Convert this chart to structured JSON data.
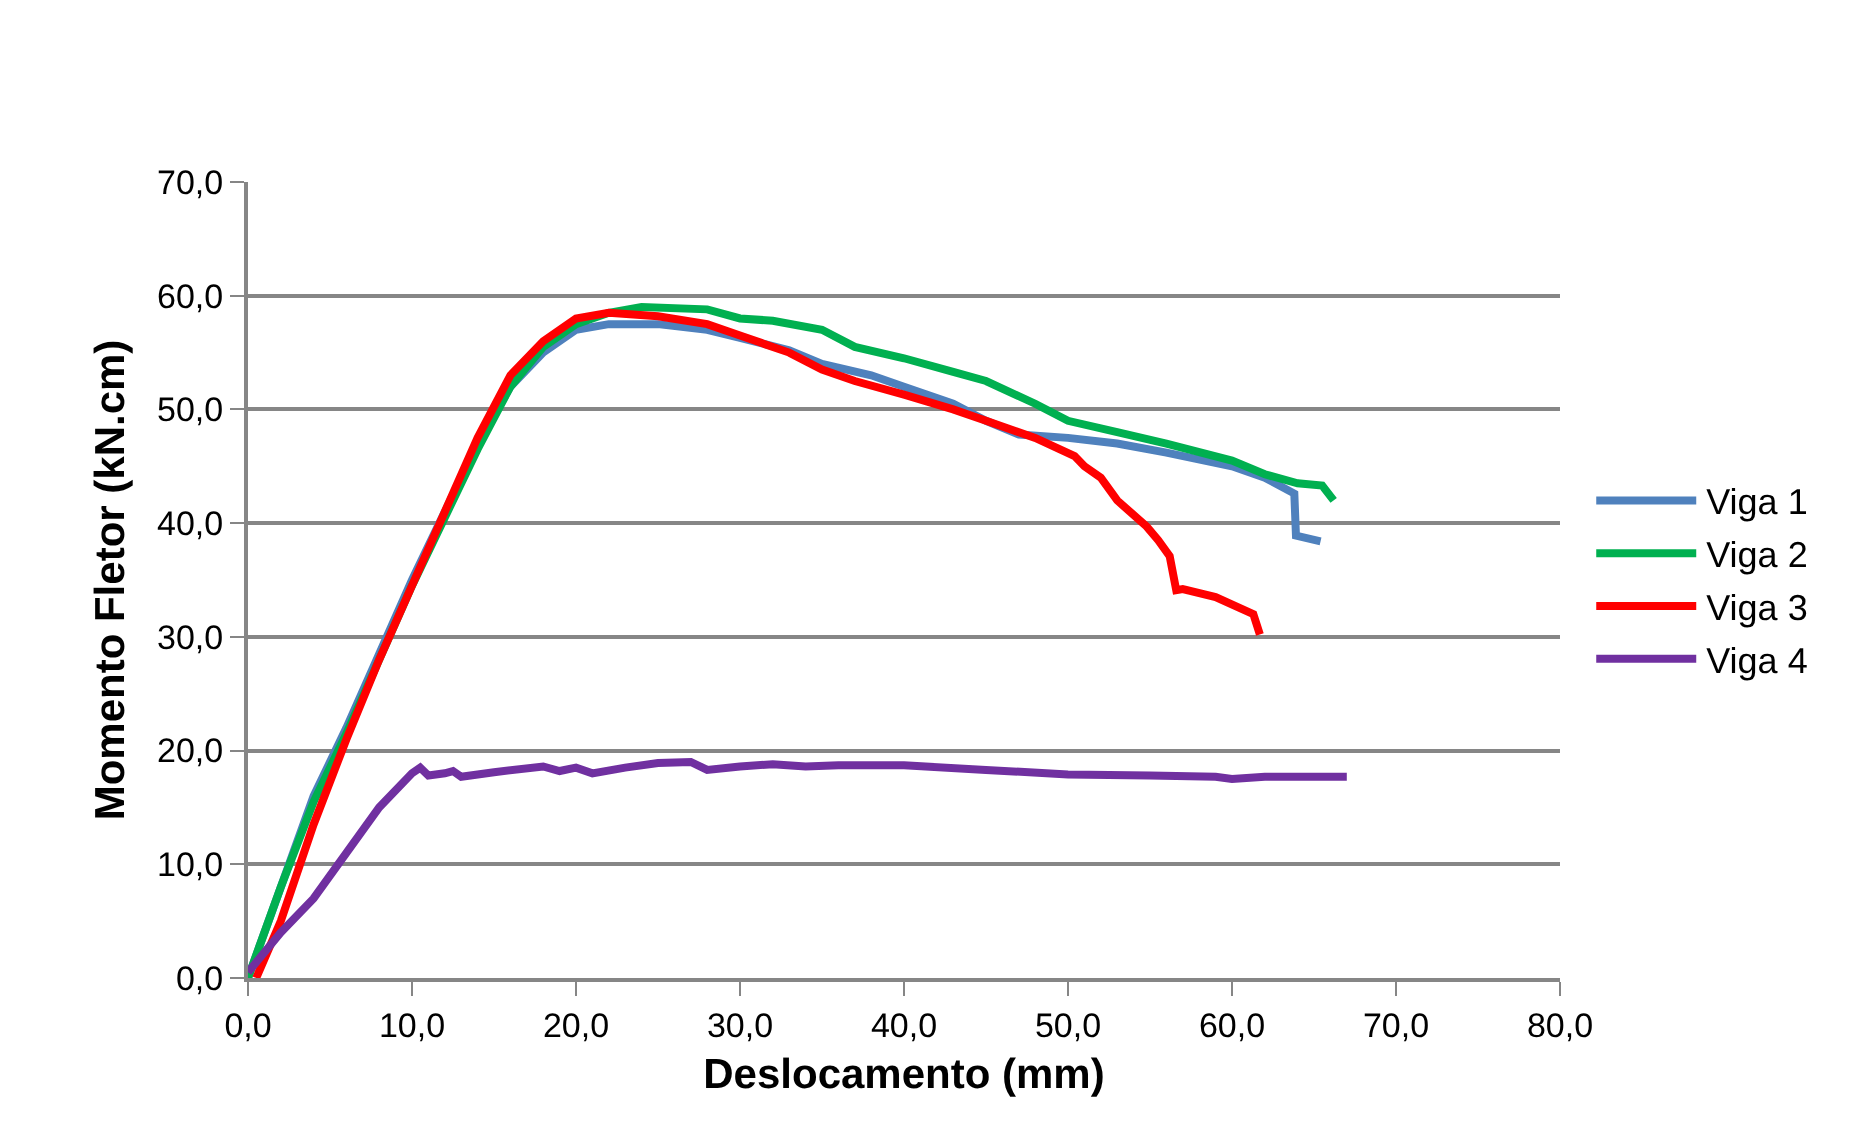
{
  "chart_data": {
    "type": "line",
    "xlabel": "Deslocamento (mm)",
    "ylabel": "Momento Fletor (kN.cm)",
    "xlim": [
      0,
      80
    ],
    "ylim": [
      0,
      70
    ],
    "xticks": [
      {
        "value": 0,
        "label": "0,0"
      },
      {
        "value": 10,
        "label": "10,0"
      },
      {
        "value": 20,
        "label": "20,0"
      },
      {
        "value": 30,
        "label": "30,0"
      },
      {
        "value": 40,
        "label": "40,0"
      },
      {
        "value": 50,
        "label": "50,0"
      },
      {
        "value": 60,
        "label": "60,0"
      },
      {
        "value": 70,
        "label": "70,0"
      },
      {
        "value": 80,
        "label": "80,0"
      }
    ],
    "yticks": [
      {
        "value": 0,
        "label": "0,0"
      },
      {
        "value": 10,
        "label": "10,0"
      },
      {
        "value": 20,
        "label": "20,0"
      },
      {
        "value": 30,
        "label": "30,0"
      },
      {
        "value": 40,
        "label": "40,0"
      },
      {
        "value": 50,
        "label": "50,0"
      },
      {
        "value": 60,
        "label": "60,0"
      },
      {
        "value": 70,
        "label": "70,0"
      }
    ],
    "grid": "y",
    "legend": "right",
    "marker": "none",
    "line_style": "solid",
    "series": [
      {
        "name": "Viga 1",
        "color": "#4f81bd",
        "x": [
          0,
          2,
          4,
          6,
          8,
          10,
          12,
          14,
          16,
          18,
          20,
          22,
          25,
          28,
          30,
          33,
          35,
          38,
          40,
          43,
          45,
          47,
          50,
          53,
          56,
          60,
          62,
          63.8,
          63.9,
          65.4
        ],
        "values": [
          0,
          8,
          16,
          22,
          28.5,
          35,
          41,
          47,
          52,
          55,
          57,
          57.5,
          57.5,
          57,
          56.3,
          55.2,
          54,
          53,
          52,
          50.5,
          49,
          47.8,
          47.5,
          47,
          46.2,
          45,
          44,
          42.6,
          38.9,
          38.4
        ]
      },
      {
        "name": "Viga 2",
        "color": "#00b050",
        "x": [
          0,
          2,
          4,
          6,
          8,
          10,
          12,
          14,
          16,
          18,
          20,
          22,
          24,
          28,
          30,
          32,
          35,
          37,
          40,
          43,
          45,
          48,
          50,
          53,
          56,
          60,
          62,
          64,
          65.5,
          66.2
        ],
        "values": [
          0,
          8,
          15.5,
          21.5,
          28,
          34.5,
          40.5,
          46.5,
          52,
          55.5,
          57.5,
          58.5,
          59,
          58.8,
          58,
          57.8,
          57,
          55.5,
          54.5,
          53.3,
          52.5,
          50.5,
          49,
          48,
          47,
          45.5,
          44.3,
          43.5,
          43.3,
          42
        ]
      },
      {
        "name": "Viga 3",
        "color": "#ff0000",
        "x": [
          0.5,
          2,
          4,
          6,
          8,
          10,
          12,
          14,
          16,
          18,
          20,
          22,
          25,
          28,
          30,
          33,
          35,
          37,
          40,
          43,
          45,
          48,
          50.4,
          51,
          52,
          53,
          54.8,
          55.5,
          56.2,
          56.6,
          57,
          59,
          61.3,
          61.7
        ],
        "values": [
          0,
          5,
          13.5,
          21,
          28,
          34.5,
          41,
          47.5,
          53,
          56,
          58,
          58.5,
          58.2,
          57.5,
          56.5,
          55,
          53.5,
          52.5,
          51.3,
          50,
          49,
          47.5,
          45.9,
          45,
          44,
          42,
          39.7,
          38.5,
          37.1,
          34.1,
          34.2,
          33.5,
          32,
          30.2
        ]
      },
      {
        "name": "Viga 4",
        "color": "#7030a0",
        "x": [
          0,
          2,
          4,
          6,
          8,
          10,
          10.5,
          11,
          12,
          12.5,
          13,
          15,
          18,
          19,
          20,
          21,
          23,
          25,
          27,
          28,
          30,
          32,
          34,
          36,
          40,
          45,
          50,
          55,
          59,
          60,
          62,
          67
        ],
        "values": [
          0.5,
          4,
          7,
          11,
          15,
          18,
          18.5,
          17.8,
          18,
          18.2,
          17.7,
          18.1,
          18.6,
          18.2,
          18.5,
          18,
          18.5,
          18.9,
          19,
          18.3,
          18.6,
          18.8,
          18.6,
          18.7,
          18.7,
          18.3,
          17.9,
          17.8,
          17.7,
          17.5,
          17.7,
          17.7
        ]
      }
    ]
  }
}
